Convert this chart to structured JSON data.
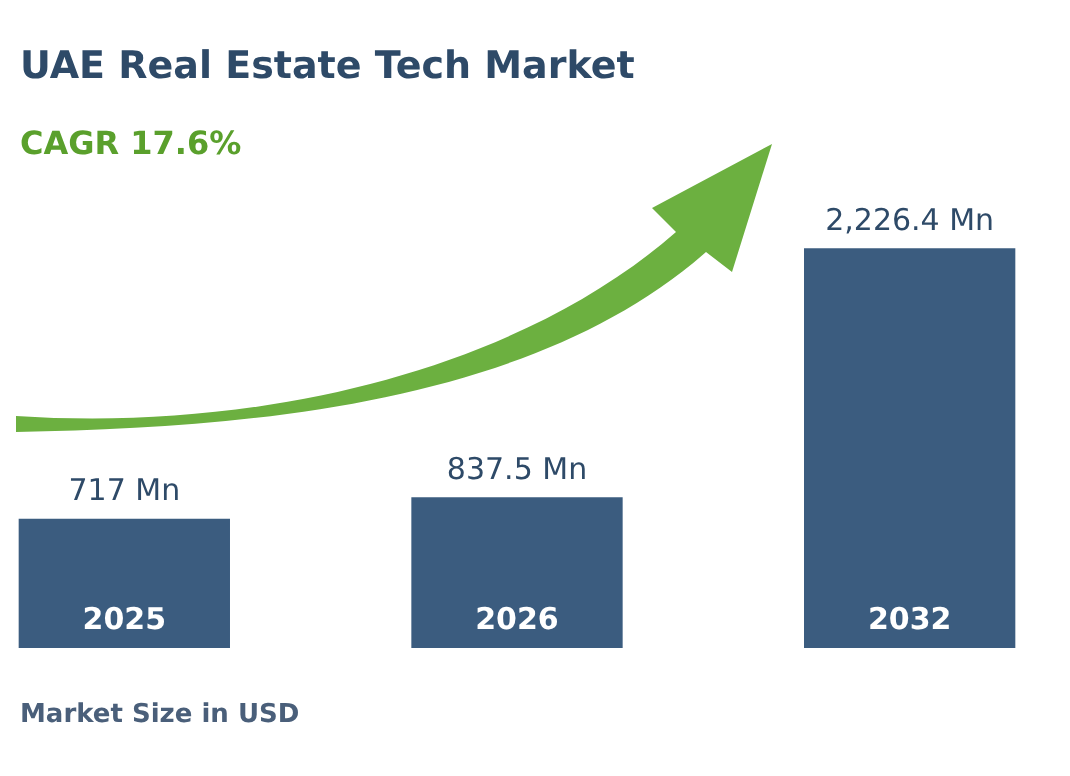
{
  "chart_data": {
    "type": "bar",
    "title": "UAE Real Estate Tech Market",
    "subtitle": "CAGR 17.6%",
    "categories": [
      "2025",
      "2026",
      "2032"
    ],
    "values": [
      717,
      837.5,
      2226.4
    ],
    "value_labels": [
      "717 Mn",
      "837.5 Mn",
      "2,226.4 Mn"
    ],
    "color": "#3b5c7f",
    "annotations": [
      "Market Size in USD"
    ],
    "legend": false
  }
}
